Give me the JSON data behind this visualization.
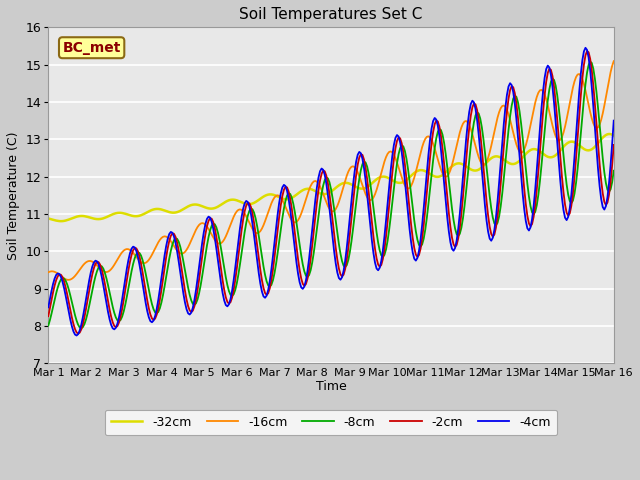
{
  "title": "Soil Temperatures Set C",
  "xlabel": "Time",
  "ylabel": "Soil Temperature (C)",
  "ylim": [
    7.0,
    16.0
  ],
  "yticks": [
    7.0,
    8.0,
    9.0,
    10.0,
    11.0,
    12.0,
    13.0,
    14.0,
    15.0,
    16.0
  ],
  "legend_labels": [
    "-2cm",
    "-4cm",
    "-8cm",
    "-16cm",
    "-32cm"
  ],
  "legend_colors": [
    "#cc0000",
    "#0000ee",
    "#00aa00",
    "#ff8800",
    "#dddd00"
  ],
  "line_widths": [
    1.3,
    1.3,
    1.3,
    1.3,
    1.8
  ],
  "annotation_text": "BC_met",
  "annotation_color": "#8b0000",
  "annotation_bg": "#ffff99",
  "x_tick_labels": [
    "Mar 1",
    "Mar 2",
    "Mar 3",
    "Mar 4",
    "Mar 5",
    "Mar 6",
    "Mar 7",
    "Mar 8",
    "Mar 9",
    "Mar 10",
    "Mar 11",
    "Mar 12",
    "Mar 13",
    "Mar 14",
    "Mar 15",
    "Mar 16"
  ]
}
